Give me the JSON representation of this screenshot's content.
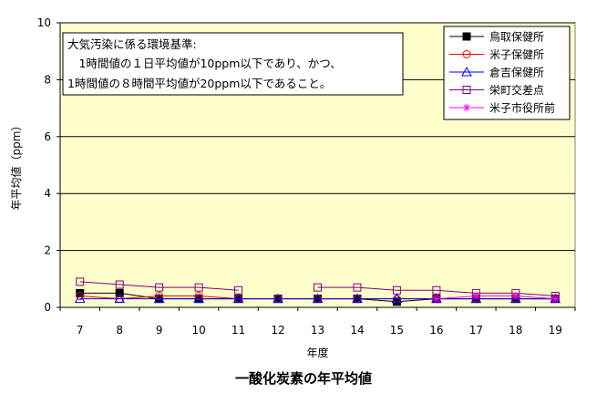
{
  "chart_data": {
    "type": "line",
    "title": "一酸化炭素の年平均値",
    "xlabel": "年度",
    "ylabel": "年平均値（ppm）",
    "x": [
      "7",
      "8",
      "9",
      "10",
      "11",
      "12",
      "13",
      "14",
      "15",
      "16",
      "17",
      "18",
      "19"
    ],
    "ylim": [
      0,
      10
    ],
    "yticks": [
      "0",
      "2",
      "4",
      "6",
      "8",
      "10"
    ],
    "grid": true,
    "legend_position": "top-right",
    "plot_background": "#FFFFCC",
    "annotation": [
      "大気汚染に係る環境基準:",
      "　1時間値の１日平均値が10ppm以下であり、かつ、",
      "1時間値の８時間平均値が20ppm以下であること。"
    ],
    "series": [
      {
        "name": "鳥取保健所",
        "color": "#000000",
        "marker": "square-filled",
        "values": [
          0.5,
          0.5,
          0.3,
          0.3,
          0.3,
          0.3,
          0.3,
          0.3,
          0.2,
          0.3,
          0.3,
          0.3,
          0.3
        ]
      },
      {
        "name": "米子保健所",
        "color": "#FF0000",
        "marker": "circle-open",
        "values": [
          0.4,
          0.3,
          0.4,
          0.4,
          0.3,
          0.3,
          0.3,
          0.3,
          0.3,
          0.3,
          0.3,
          0.3,
          0.3
        ]
      },
      {
        "name": "倉吉保健所",
        "color": "#0000FF",
        "marker": "triangle-open",
        "values": [
          0.3,
          0.3,
          0.3,
          0.3,
          0.3,
          0.3,
          0.3,
          0.3,
          0.3,
          0.3,
          0.3,
          0.3,
          0.3
        ]
      },
      {
        "name": "栄町交差点",
        "color": "#800080",
        "marker": "square-open",
        "values": [
          0.9,
          0.8,
          0.7,
          0.7,
          0.6,
          null,
          0.7,
          0.7,
          0.6,
          0.6,
          0.5,
          0.5,
          0.4
        ]
      },
      {
        "name": "米子市役所前",
        "color": "#FF00FF",
        "marker": "asterisk",
        "values": [
          null,
          null,
          null,
          null,
          null,
          null,
          null,
          null,
          null,
          0.3,
          0.4,
          0.4,
          0.3
        ]
      }
    ]
  }
}
